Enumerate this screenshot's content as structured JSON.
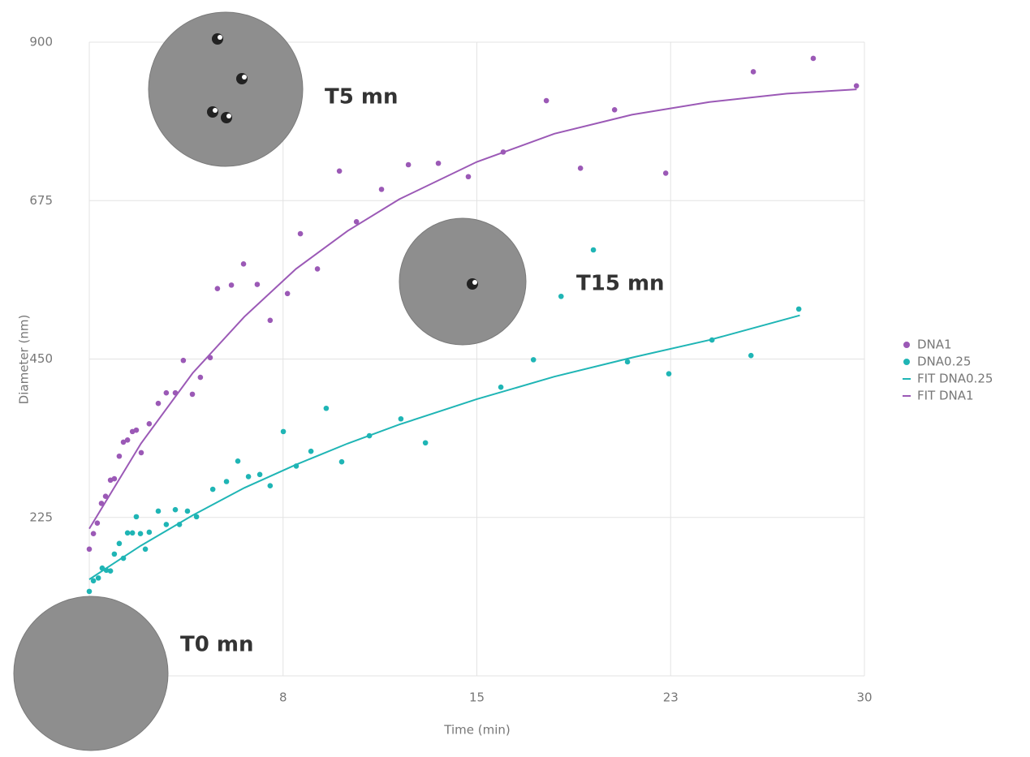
{
  "chart_data": {
    "type": "scatter",
    "x_label": "Time (min)",
    "y_label": "Diameter (nm)",
    "xlim": [
      0,
      30
    ],
    "ylim": [
      0,
      900
    ],
    "xticks": [
      {
        "value": 7.5,
        "label": "8"
      },
      15,
      {
        "value": 22.5,
        "label": "23"
      },
      30
    ],
    "yticks": [
      225,
      450,
      675,
      900
    ],
    "grid": true,
    "legend": "right",
    "annotations": [
      "T5 mn",
      "T15 mn",
      "T0 mn"
    ],
    "series": [
      {
        "name": "DNA1",
        "color": "#9b59b6",
        "style": "markers",
        "x": [
          0.0,
          0.16,
          0.31,
          0.47,
          0.63,
          0.82,
          0.97,
          1.16,
          1.32,
          1.48,
          1.67,
          1.82,
          2.01,
          2.32,
          2.67,
          2.98,
          3.33,
          3.64,
          3.99,
          4.3,
          4.68,
          4.96,
          5.5,
          5.97,
          6.5,
          7.0,
          7.67,
          8.17,
          8.83,
          9.68,
          10.34,
          11.31,
          12.35,
          13.51,
          14.67,
          16.02,
          17.69,
          19.01,
          20.33,
          22.31,
          25.7,
          28.02,
          29.69
        ],
        "values": [
          180,
          202,
          217,
          245,
          255,
          278,
          280,
          312,
          332,
          335,
          347,
          349,
          317,
          358,
          387,
          402,
          402,
          448,
          400,
          424,
          452,
          550,
          555,
          585,
          556,
          505,
          543,
          628,
          578,
          717,
          645,
          691,
          726,
          728,
          709,
          744,
          817,
          721,
          804,
          714,
          858,
          877,
          838
        ]
      },
      {
        "name": "DNA0.25",
        "color": "#1fb5b5",
        "style": "markers",
        "x": [
          0,
          0.16,
          0.35,
          0.5,
          0.66,
          0.82,
          0.97,
          1.16,
          1.32,
          1.48,
          1.67,
          1.82,
          1.98,
          2.17,
          2.32,
          2.67,
          2.98,
          3.33,
          3.49,
          3.8,
          4.15,
          4.78,
          5.31,
          5.75,
          6.16,
          6.6,
          7.0,
          7.51,
          8.01,
          8.58,
          9.17,
          9.77,
          10.84,
          12.06,
          13.01,
          15.93,
          17.19,
          18.26,
          19.51,
          20.83,
          22.43,
          24.1,
          25.61,
          27.46
        ],
        "values": [
          120,
          135,
          139,
          153,
          150,
          149,
          173,
          188,
          167,
          203,
          203,
          226,
          202,
          180,
          204,
          234,
          215,
          236,
          215,
          234,
          226,
          265,
          276,
          305,
          283,
          286,
          270,
          347,
          298,
          319,
          380,
          304,
          341,
          365,
          331,
          410,
          449,
          539,
          605,
          446,
          429,
          477,
          455,
          521
        ]
      },
      {
        "name": "FIT DNA0.25",
        "color": "#1fb5b5",
        "style": "line",
        "x": [
          0,
          2,
          4,
          6,
          8,
          10,
          12,
          15,
          18,
          21,
          24,
          27.5
        ],
        "values": [
          137,
          185,
          228,
          267,
          300,
          330,
          357,
          393,
          425,
          452,
          477,
          512
        ]
      },
      {
        "name": "FIT DNA1",
        "color": "#9b59b6",
        "style": "line",
        "x": [
          0,
          2,
          4,
          6,
          8,
          10,
          12,
          15,
          18,
          21,
          24,
          27,
          29.7
        ],
        "values": [
          209,
          330,
          430,
          510,
          578,
          632,
          677,
          730,
          770,
          797,
          815,
          827,
          833
        ]
      }
    ]
  }
}
